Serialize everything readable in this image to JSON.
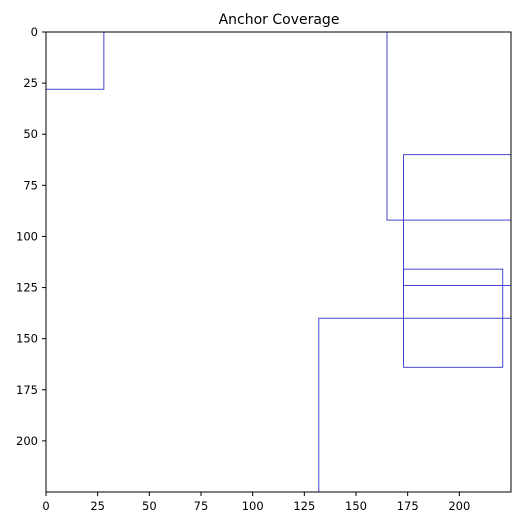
{
  "chart_data": {
    "type": "rectangles",
    "title": "Anchor Coverage",
    "xlabel": "",
    "ylabel": "",
    "xlim": [
      0,
      225
    ],
    "ylim": [
      225,
      0
    ],
    "y_inverted": true,
    "grid": false,
    "x_ticks": [
      0,
      25,
      50,
      75,
      100,
      125,
      150,
      175,
      200
    ],
    "y_ticks": [
      0,
      25,
      50,
      75,
      100,
      125,
      150,
      175,
      200
    ],
    "box_color": "#3333cc",
    "boxes": [
      {
        "x0": 0,
        "y0": 0,
        "x1": 28,
        "y1": 28
      },
      {
        "x0": 165,
        "y0": 0,
        "x1": 225,
        "y1": 92
      },
      {
        "x0": 173,
        "y0": 60,
        "x1": 225,
        "y1": 124
      },
      {
        "x0": 173,
        "y0": 116,
        "x1": 221,
        "y1": 164
      },
      {
        "x0": 132,
        "y0": 140,
        "x1": 225,
        "y1": 225
      }
    ]
  }
}
